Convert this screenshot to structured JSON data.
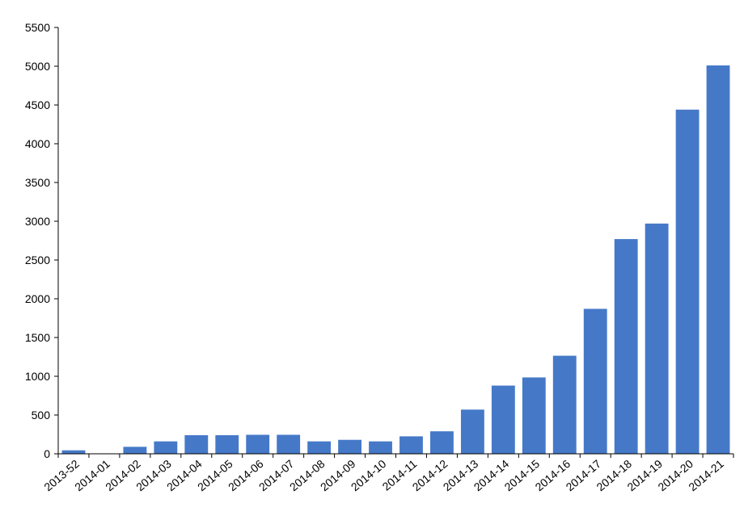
{
  "chart_data": {
    "type": "bar",
    "title": "",
    "xlabel": "",
    "ylabel": "",
    "ylim": [
      0,
      5500
    ],
    "yticks": [
      0,
      500,
      1000,
      1500,
      2000,
      2500,
      3000,
      3500,
      4000,
      4500,
      5000,
      5500
    ],
    "grid": false,
    "bar_color": "#4579c8",
    "categories": [
      "2013-52",
      "2014-01",
      "2014-02",
      "2014-03",
      "2014-04",
      "2014-05",
      "2014-06",
      "2014-07",
      "2014-08",
      "2014-09",
      "2014-10",
      "2014-11",
      "2014-12",
      "2014-13",
      "2014-14",
      "2014-15",
      "2014-16",
      "2014-17",
      "2014-18",
      "2014-19",
      "2014-20",
      "2014-21"
    ],
    "values": [
      45,
      5,
      90,
      160,
      240,
      240,
      245,
      245,
      160,
      180,
      160,
      225,
      290,
      570,
      880,
      985,
      1265,
      1870,
      2770,
      2970,
      4440,
      5010
    ]
  }
}
